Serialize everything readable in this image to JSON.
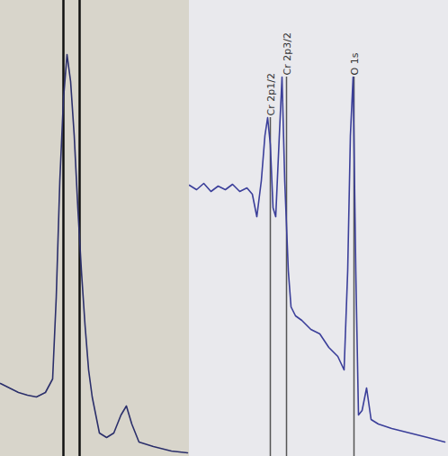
{
  "chart_data": [
    {
      "type": "line",
      "x": [
        0,
        10,
        20,
        30,
        40,
        50,
        58,
        62,
        66,
        70,
        74,
        78,
        82,
        86,
        90,
        94,
        98,
        102,
        106,
        110,
        118,
        126,
        134,
        140,
        146,
        154,
        170,
        190,
        208
      ],
      "values": [
        81,
        76,
        71,
        68,
        66,
        71,
        86,
        176,
        306,
        396,
        446,
        416,
        356,
        276,
        206,
        146,
        96,
        66,
        46,
        26,
        21,
        26,
        46,
        56,
        36,
        16,
        11,
        6,
        4
      ],
      "color": "#2b2f6b",
      "xlim": [
        0,
        210
      ],
      "ylim": [
        0,
        506
      ],
      "tick_labels": false,
      "markers": [
        {
          "x": 70
        },
        {
          "x": 88
        }
      ]
    },
    {
      "type": "line",
      "x": [
        0,
        8,
        16,
        24,
        32,
        40,
        48,
        56,
        64,
        70,
        75,
        80,
        84,
        87,
        90,
        93,
        96,
        100,
        103,
        106,
        110,
        113,
        118,
        125,
        135,
        145,
        155,
        165,
        172,
        176,
        179,
        182,
        185,
        188,
        192,
        197,
        202,
        210,
        225,
        245,
        265,
        284
      ],
      "values": [
        301,
        296,
        303,
        294,
        300,
        296,
        302,
        294,
        298,
        291,
        266,
        306,
        356,
        376,
        346,
        276,
        266,
        356,
        421,
        306,
        206,
        166,
        156,
        151,
        141,
        136,
        121,
        111,
        96,
        206,
        356,
        421,
        206,
        46,
        51,
        76,
        41,
        36,
        31,
        26,
        21,
        16
      ],
      "color": "#3b3f9a",
      "xlim": [
        0,
        288
      ],
      "ylim": [
        0,
        506
      ],
      "tick_labels": false,
      "markers": [
        {
          "label": "Cr 2p1/2",
          "x": 90,
          "y": 376
        },
        {
          "label": "Cr 2p3/2",
          "x": 108,
          "y": 421
        },
        {
          "label": "O 1s",
          "x": 183,
          "y": 421
        }
      ]
    }
  ]
}
